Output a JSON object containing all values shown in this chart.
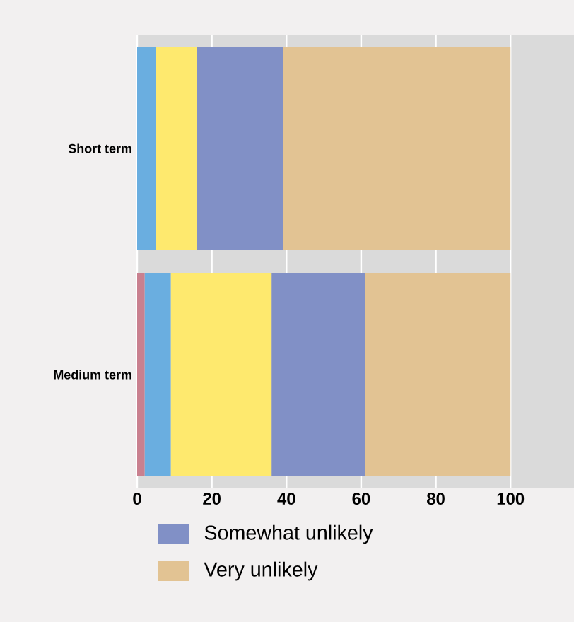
{
  "chart_data": {
    "type": "bar",
    "orientation": "horizontal",
    "stacked": true,
    "categories": [
      "Short term",
      "Medium term"
    ],
    "series": [
      {
        "color": "#c9808f",
        "values": [
          0,
          2
        ]
      },
      {
        "color": "#6aaee0",
        "values": [
          5,
          7
        ]
      },
      {
        "color": "#fee96e",
        "values": [
          11,
          27
        ]
      },
      {
        "name": "Somewhat unlikely",
        "color": "#8190c6",
        "values": [
          23,
          25
        ]
      },
      {
        "name": "Very unlikely",
        "color": "#e2c393",
        "values": [
          61,
          39
        ]
      }
    ],
    "xlim": [
      0,
      117
    ],
    "xticks": [
      0,
      20,
      40,
      60,
      80,
      100
    ],
    "grid": "x",
    "legend": "bottom"
  }
}
